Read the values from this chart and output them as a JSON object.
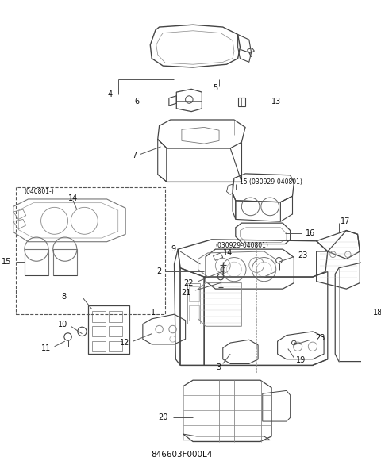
{
  "title": "846603F000L4",
  "background_color": "#ffffff",
  "fig_width": 4.8,
  "fig_height": 6.0,
  "dpi": 100,
  "line_color": "#444444",
  "label_color": "#111111",
  "fs": 7.0
}
